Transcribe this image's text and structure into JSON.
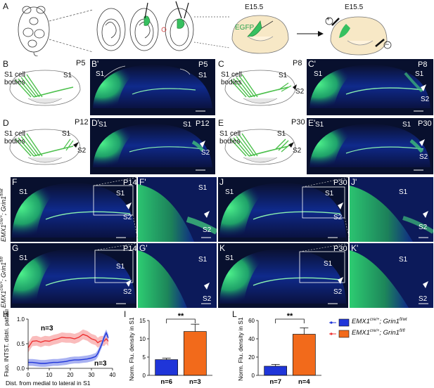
{
  "panel_letters": {
    "A": "A",
    "B": "B",
    "Bp": "B'",
    "C": "C",
    "Cp": "C'",
    "D": "D",
    "Dp": "D'",
    "E": "E",
    "Ep": "E'",
    "F": "F",
    "Fp": "F'",
    "G": "G",
    "Gp": "G'",
    "J": "J",
    "Jp": "J'",
    "K": "K",
    "Kp": "K'",
    "H": "H",
    "I": "I",
    "L": "L"
  },
  "panel_a": {
    "age1": "E15.5",
    "age2": "E15.5",
    "egfp": "EGFP",
    "plus": "+",
    "minus": "−"
  },
  "schematics": {
    "B": {
      "cell": "S1 cell",
      "bodies": "bodies",
      "s1": "S1",
      "s2": "",
      "age": "P5"
    },
    "C": {
      "cell": "S1 cell",
      "bodies": "bodies",
      "s1": "S1",
      "s2": "S2",
      "age": "P8"
    },
    "D": {
      "cell": "S1 cell",
      "bodies": "bodies",
      "s1": "S1",
      "s2": "S2",
      "age": "P12"
    },
    "E": {
      "cell": "S1 cell",
      "bodies": "bodies",
      "s1": "S1",
      "s2": "S2",
      "age": "P30"
    }
  },
  "micrographs": {
    "Bp": {
      "age": "P5",
      "s1a": "S1",
      "s1b": "S1",
      "s2": ""
    },
    "Cp": {
      "age": "P8",
      "s1a": "S1",
      "s1b": "S1",
      "s2": "S2"
    },
    "Dp": {
      "age": "P12",
      "s1a": "S1",
      "s1b": "S1",
      "s2": "S2"
    },
    "Ep": {
      "age": "P30",
      "s1a": "S1",
      "s1b": "S1",
      "s2": "S2"
    },
    "F": {
      "age": "P14",
      "s1a": "S1",
      "s1b": "S1",
      "s2": "S2"
    },
    "Fp": {
      "s1": "S1",
      "s2": "S2"
    },
    "J": {
      "age": "P30",
      "s1a": "S1",
      "s1b": "S1",
      "s2": "S2"
    },
    "Jp": {
      "s1": "S1",
      "s2": "S2"
    },
    "G": {
      "age": "P14",
      "s1a": "S1",
      "s1b": "S1",
      "s2": "S2"
    },
    "Gp": {
      "s1": "S1",
      "s2": "S2"
    },
    "K": {
      "age": "P30",
      "s1a": "S1",
      "s1b": "S1",
      "s2": "S2"
    },
    "Kp": {
      "s1": "S1",
      "s2": "S2"
    }
  },
  "genotype_labels": {
    "wt": {
      "base": "EMX1",
      "sup1": "cre/+",
      "sep": "; ",
      "gene": "Grin1",
      "sup2": "fl/wt"
    },
    "fl": {
      "base": "EMX1",
      "sup1": "cre/+",
      "sep": "; ",
      "gene": "Grin1",
      "sup2": "fl/fl"
    }
  },
  "legend": {
    "items": [
      {
        "base": "EMX1",
        "sup1": "cre/+",
        "sep": "; ",
        "gene": "Grin1",
        "sup2": "fl/wt",
        "color": "#1f35d9"
      },
      {
        "base": "EMX1",
        "sup1": "cre/+",
        "sep": "; ",
        "gene": "Grin1",
        "sup2": "fl/fl",
        "color": "#f26a1b"
      }
    ]
  },
  "colors": {
    "wt": "#1f35d9",
    "fl": "#f26a1b",
    "wt_band": "#9aa5f0",
    "fl_band": "#f9b0b0",
    "fl_line": "#ee3333",
    "green": "#37e07a"
  },
  "chart_data": [
    {
      "panel": "H",
      "type": "line",
      "xlabel": "Dist. from medial to lateral in S1",
      "ylabel": "Fluo. INTST. distri. pattern",
      "xlim": [
        0,
        40
      ],
      "ylim": [
        0,
        1.0
      ],
      "xticks": [
        "0",
        "10",
        "20",
        "30",
        "40"
      ],
      "yticks": [
        "0.0",
        "0.5",
        "1.0"
      ],
      "annotations": [
        "n=3",
        "n=3"
      ],
      "series": [
        {
          "x": [
            0,
            2,
            4,
            6,
            8,
            10,
            12,
            14,
            16,
            18,
            20,
            22,
            24,
            26,
            28,
            30,
            32,
            33,
            34,
            35,
            36,
            37,
            38
          ],
          "y": [
            0.42,
            0.55,
            0.56,
            0.53,
            0.56,
            0.55,
            0.58,
            0.6,
            0.63,
            0.62,
            0.62,
            0.6,
            0.63,
            0.69,
            0.66,
            0.6,
            0.57,
            0.52,
            0.55,
            0.56,
            0.55,
            0.6,
            0.55
          ],
          "band": 0.1
        },
        {
          "x": [
            0,
            2,
            4,
            6,
            8,
            10,
            12,
            14,
            16,
            18,
            20,
            22,
            24,
            26,
            28,
            30,
            32,
            33,
            34,
            35,
            36,
            37,
            38
          ],
          "y": [
            0.12,
            0.12,
            0.11,
            0.1,
            0.1,
            0.11,
            0.12,
            0.12,
            0.13,
            0.14,
            0.16,
            0.17,
            0.17,
            0.18,
            0.19,
            0.21,
            0.24,
            0.3,
            0.4,
            0.5,
            0.63,
            0.72,
            0.62
          ],
          "band": 0.07
        }
      ]
    },
    {
      "panel": "I",
      "type": "bar",
      "ylabel": "Norm. Flu. density in S1",
      "categories": [
        "n=6",
        "n=3"
      ],
      "values": [
        4.3,
        12.0
      ],
      "errors": [
        0.4,
        2.0
      ],
      "ylim": [
        0,
        15
      ],
      "yticks": [
        "0",
        "5",
        "10",
        "15"
      ],
      "significance": "**"
    },
    {
      "panel": "L",
      "type": "bar",
      "ylabel": "Norm. Flu. density in S1",
      "categories": [
        "n=7",
        "n=4"
      ],
      "values": [
        10.0,
        45.0
      ],
      "errors": [
        2.0,
        7.0
      ],
      "ylim": [
        0,
        60
      ],
      "yticks": [
        "0",
        "20",
        "40",
        "60"
      ],
      "significance": "**"
    }
  ]
}
